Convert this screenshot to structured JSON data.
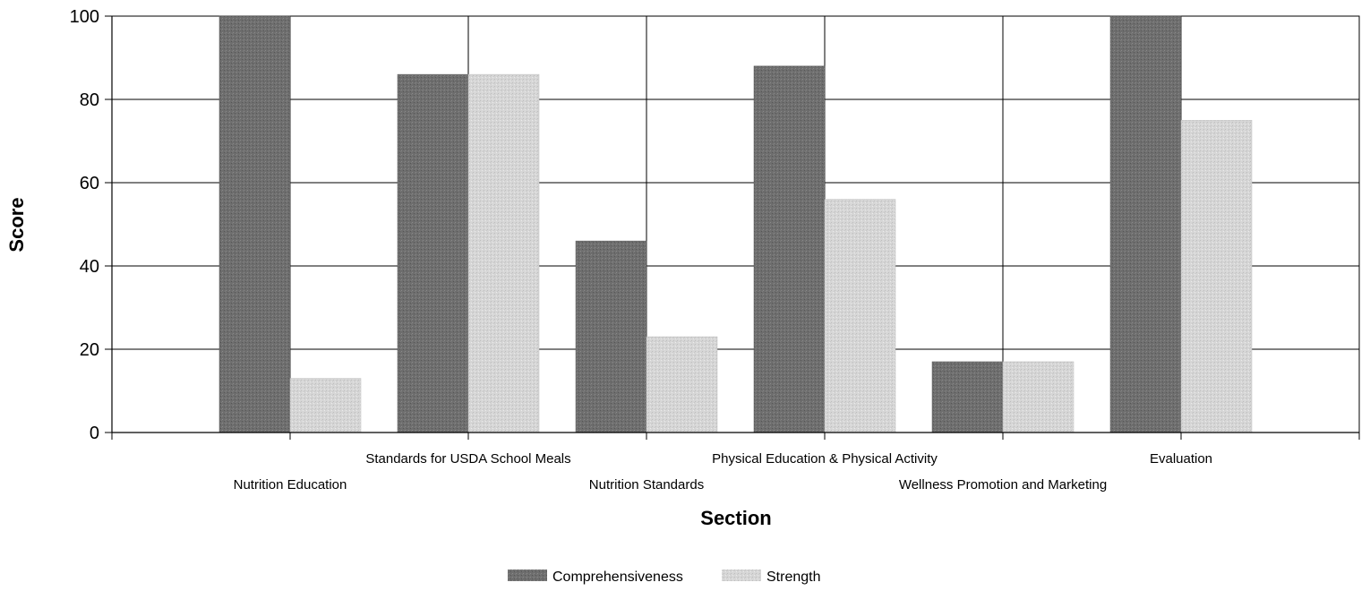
{
  "chart_data": {
    "type": "bar",
    "categories": [
      "Nutrition Education",
      "Standards for USDA School Meals",
      "Nutrition Standards",
      "Physical Education & Physical Activity",
      "Wellness Promotion and Marketing",
      "Evaluation"
    ],
    "series": [
      {
        "name": "Comprehensiveness",
        "values": [
          100,
          86,
          46,
          88,
          17,
          100
        ],
        "color": "#6e6e6e"
      },
      {
        "name": "Strength",
        "values": [
          13,
          86,
          23,
          56,
          17,
          75
        ],
        "color": "#d4d4d4"
      }
    ],
    "xlabel": "Section",
    "ylabel": "Score",
    "ylim": [
      0,
      100
    ],
    "yticks": [
      0,
      20,
      40,
      60,
      80,
      100
    ],
    "grid": true,
    "legend": "bottom-center"
  }
}
